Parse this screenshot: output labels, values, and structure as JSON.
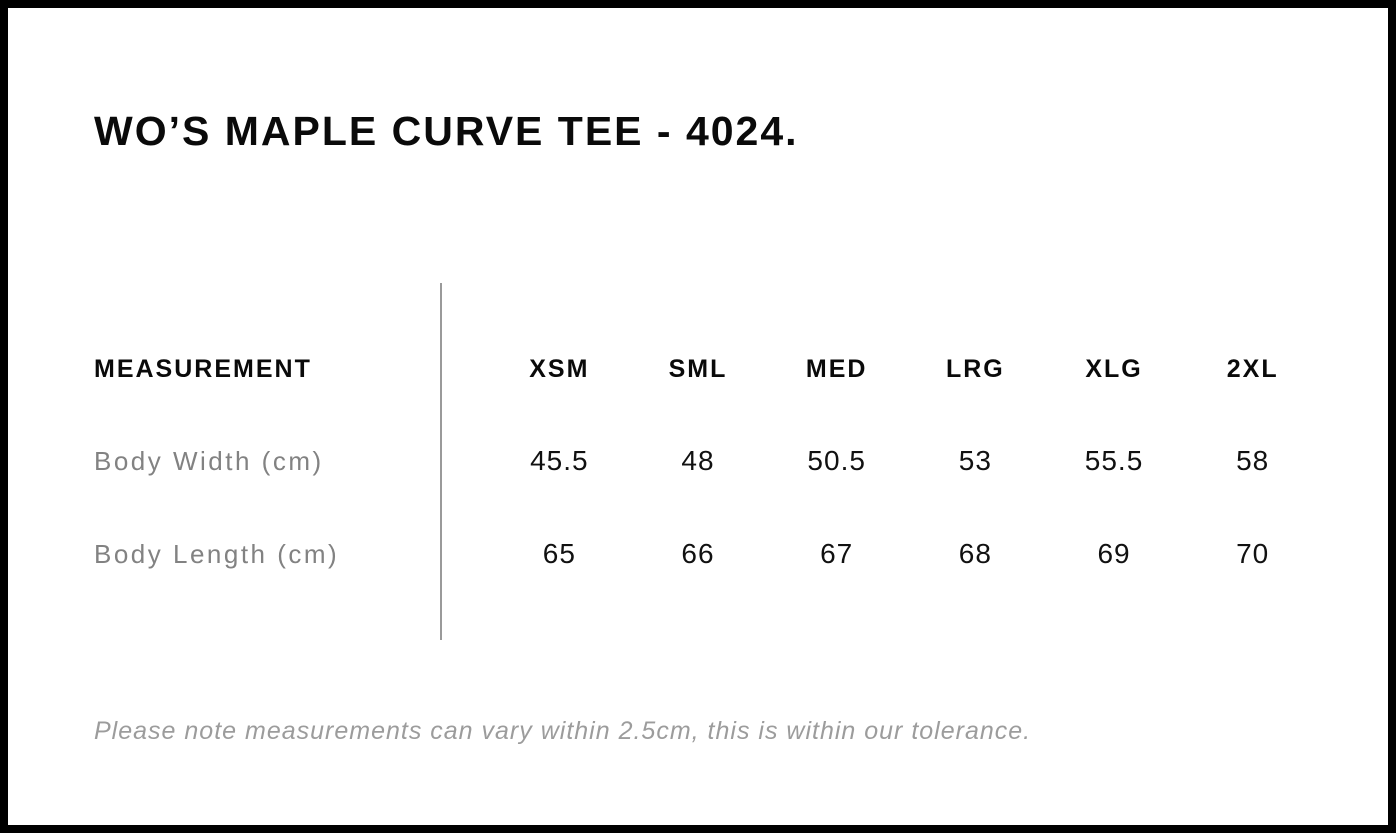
{
  "colors": {
    "background": "#ffffff",
    "frame_border": "#000000",
    "heading_text": "#0a0a0a",
    "value_text": "#111111",
    "muted_label_text": "#828282",
    "note_text": "#9c9c9c",
    "divider": "#9a9a9a"
  },
  "chart_data": {
    "type": "table",
    "title": "WO’S MAPLE CURVE TEE - 4024.",
    "columns": [
      "MEASUREMENT",
      "XSM",
      "SML",
      "MED",
      "LRG",
      "XLG",
      "2XL"
    ],
    "rows": [
      [
        "Body Width (cm)",
        45.5,
        48,
        50.5,
        53,
        55.5,
        58
      ],
      [
        "Body Length (cm)",
        65,
        66,
        67,
        68,
        69,
        70
      ]
    ],
    "note": "Please note measurements can vary within 2.5cm, this is within our tolerance.",
    "layout_hints": {
      "label_column_divider": "thin gray vertical rule between label column and size columns",
      "grid": "off",
      "frame": "thick black outer border"
    }
  }
}
